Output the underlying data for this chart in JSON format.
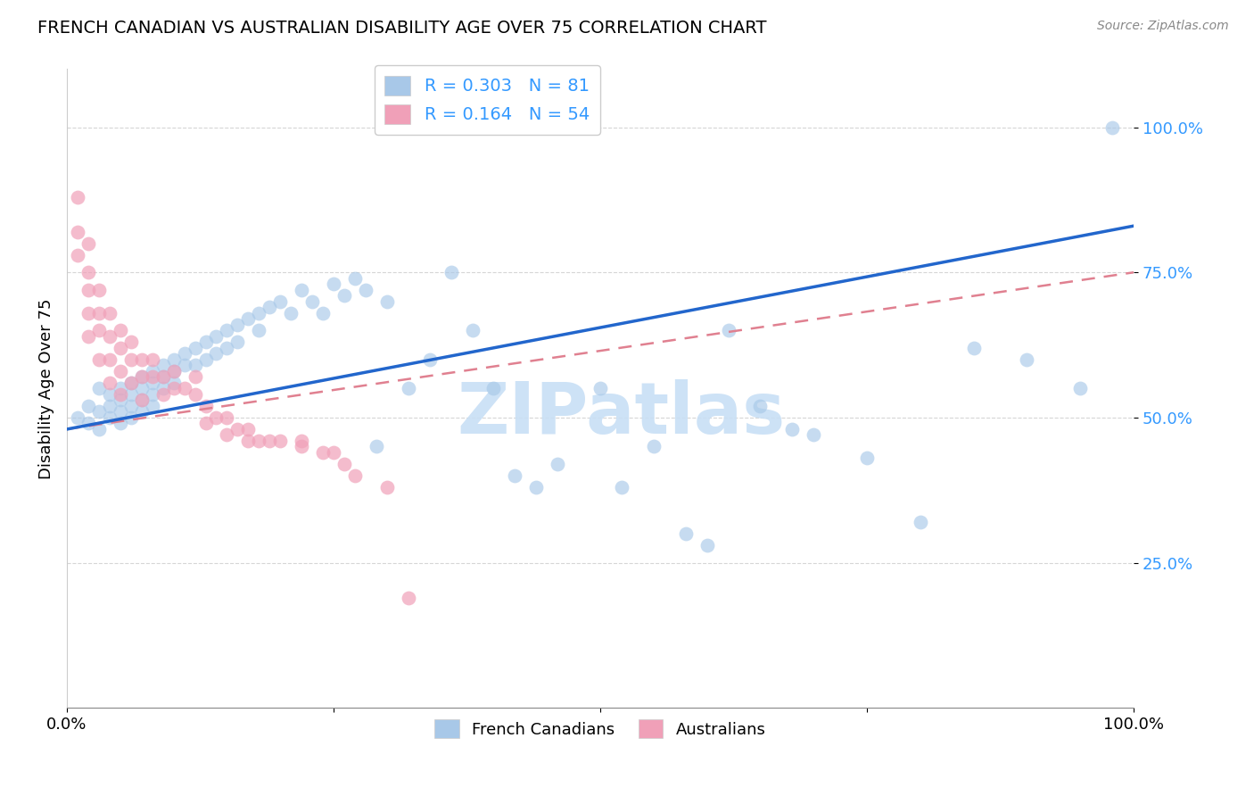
{
  "title": "FRENCH CANADIAN VS AUSTRALIAN DISABILITY AGE OVER 75 CORRELATION CHART",
  "source": "Source: ZipAtlas.com",
  "ylabel": "Disability Age Over 75",
  "blue_color": "#a8c8e8",
  "pink_color": "#f0a0b8",
  "blue_line_color": "#2266cc",
  "pink_line_color": "#e08090",
  "blue_R": 0.303,
  "blue_N": 81,
  "pink_R": 0.164,
  "pink_N": 54,
  "legend_text_color": "#3399ff",
  "watermark": "ZIPatlas",
  "watermark_color": "#c8dff5",
  "blue_scatter_x": [
    0.01,
    0.02,
    0.02,
    0.03,
    0.03,
    0.03,
    0.04,
    0.04,
    0.04,
    0.05,
    0.05,
    0.05,
    0.05,
    0.06,
    0.06,
    0.06,
    0.06,
    0.07,
    0.07,
    0.07,
    0.07,
    0.08,
    0.08,
    0.08,
    0.08,
    0.09,
    0.09,
    0.09,
    0.1,
    0.1,
    0.1,
    0.11,
    0.11,
    0.12,
    0.12,
    0.13,
    0.13,
    0.14,
    0.14,
    0.15,
    0.15,
    0.16,
    0.16,
    0.17,
    0.18,
    0.18,
    0.19,
    0.2,
    0.21,
    0.22,
    0.23,
    0.24,
    0.25,
    0.26,
    0.27,
    0.28,
    0.29,
    0.3,
    0.32,
    0.34,
    0.36,
    0.38,
    0.4,
    0.42,
    0.44,
    0.46,
    0.5,
    0.52,
    0.55,
    0.58,
    0.6,
    0.62,
    0.65,
    0.68,
    0.7,
    0.75,
    0.8,
    0.85,
    0.9,
    0.95,
    0.98
  ],
  "blue_scatter_y": [
    0.5,
    0.52,
    0.49,
    0.55,
    0.51,
    0.48,
    0.54,
    0.52,
    0.5,
    0.55,
    0.53,
    0.51,
    0.49,
    0.56,
    0.54,
    0.52,
    0.5,
    0.57,
    0.55,
    0.53,
    0.51,
    0.58,
    0.56,
    0.54,
    0.52,
    0.59,
    0.57,
    0.55,
    0.6,
    0.58,
    0.56,
    0.61,
    0.59,
    0.62,
    0.59,
    0.63,
    0.6,
    0.64,
    0.61,
    0.65,
    0.62,
    0.66,
    0.63,
    0.67,
    0.68,
    0.65,
    0.69,
    0.7,
    0.68,
    0.72,
    0.7,
    0.68,
    0.73,
    0.71,
    0.74,
    0.72,
    0.45,
    0.7,
    0.55,
    0.6,
    0.75,
    0.65,
    0.55,
    0.4,
    0.38,
    0.42,
    0.55,
    0.38,
    0.45,
    0.3,
    0.28,
    0.65,
    0.52,
    0.48,
    0.47,
    0.43,
    0.32,
    0.62,
    0.6,
    0.55,
    1.0
  ],
  "pink_scatter_x": [
    0.01,
    0.01,
    0.01,
    0.02,
    0.02,
    0.02,
    0.02,
    0.02,
    0.03,
    0.03,
    0.03,
    0.03,
    0.04,
    0.04,
    0.04,
    0.04,
    0.05,
    0.05,
    0.05,
    0.05,
    0.06,
    0.06,
    0.06,
    0.07,
    0.07,
    0.07,
    0.08,
    0.08,
    0.09,
    0.09,
    0.1,
    0.1,
    0.11,
    0.12,
    0.12,
    0.13,
    0.13,
    0.14,
    0.15,
    0.15,
    0.16,
    0.17,
    0.17,
    0.18,
    0.19,
    0.2,
    0.22,
    0.22,
    0.24,
    0.25,
    0.26,
    0.27,
    0.3,
    0.32
  ],
  "pink_scatter_y": [
    0.88,
    0.82,
    0.78,
    0.8,
    0.75,
    0.72,
    0.68,
    0.64,
    0.72,
    0.68,
    0.65,
    0.6,
    0.68,
    0.64,
    0.6,
    0.56,
    0.65,
    0.62,
    0.58,
    0.54,
    0.63,
    0.6,
    0.56,
    0.6,
    0.57,
    0.53,
    0.6,
    0.57,
    0.57,
    0.54,
    0.58,
    0.55,
    0.55,
    0.57,
    0.54,
    0.52,
    0.49,
    0.5,
    0.5,
    0.47,
    0.48,
    0.48,
    0.46,
    0.46,
    0.46,
    0.46,
    0.46,
    0.45,
    0.44,
    0.44,
    0.42,
    0.4,
    0.38,
    0.19
  ]
}
